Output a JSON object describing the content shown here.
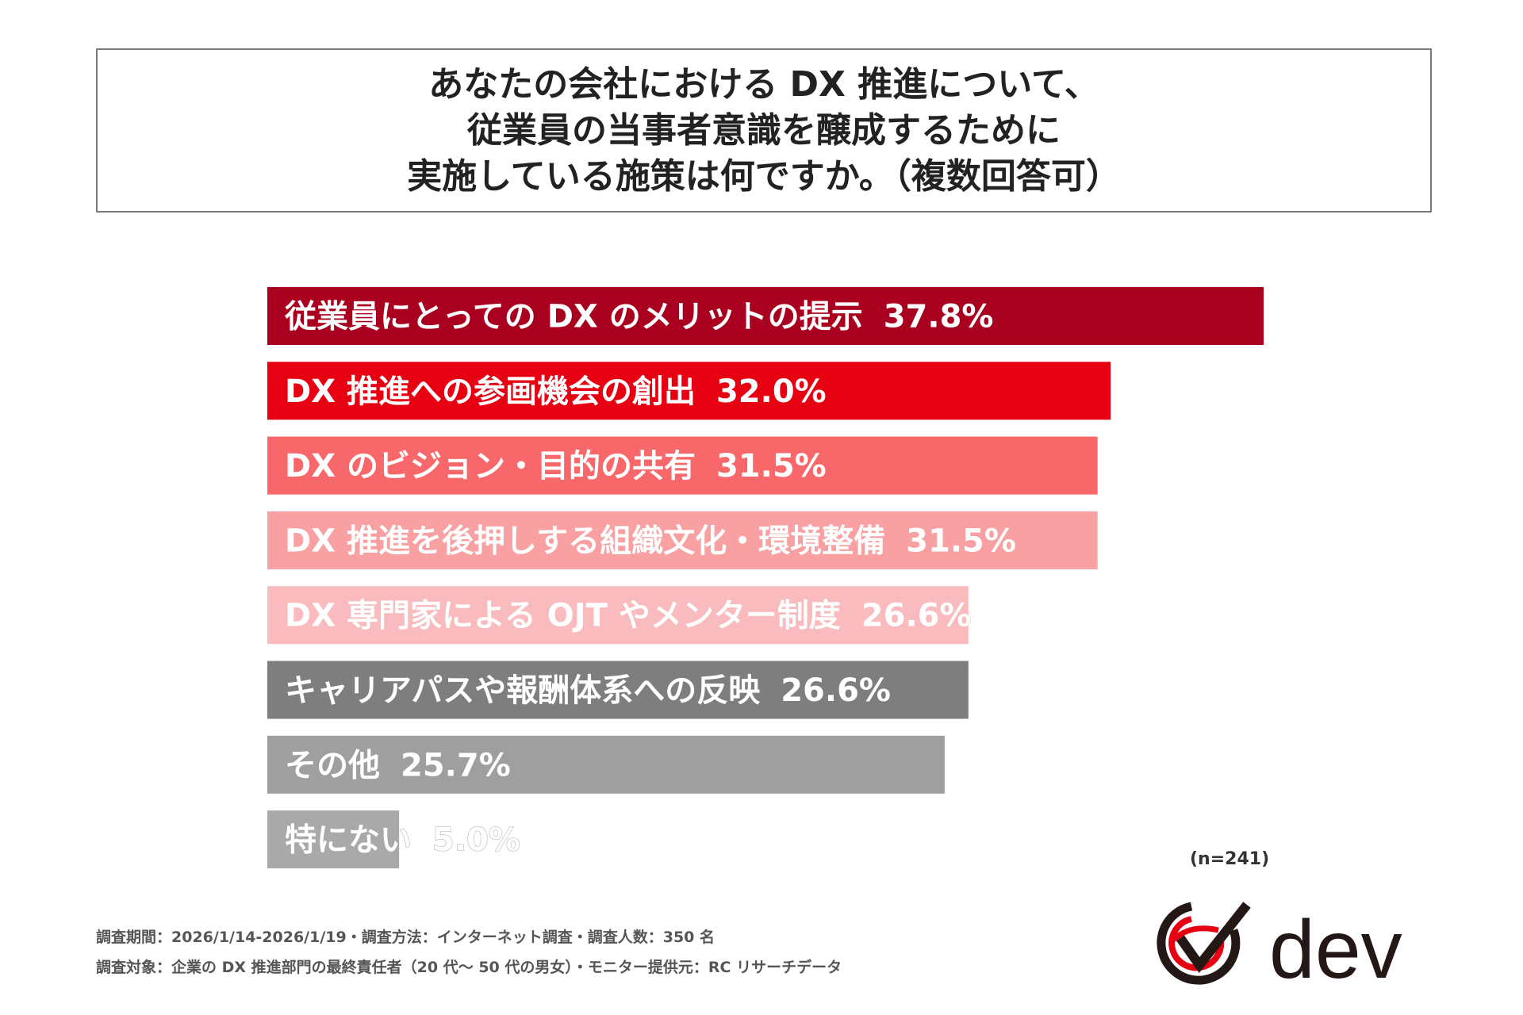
{
  "title": {
    "lines": [
      "あなたの会社における DX 推進について、",
      "従業員の当事者意識を醸成するために",
      "実施している施策は何ですか。（複数回答可）"
    ]
  },
  "chart_data": {
    "type": "bar",
    "orientation": "horizontal",
    "xlim": [
      0,
      37.8
    ],
    "categories": [
      "従業員にとっての DX のメリットの提示",
      "DX 推進への参画機会の創出",
      "DX のビジョン・目的の共有",
      "DX 推進を後押しする組織文化・環境整備",
      "DX 専門家による OJT やメンター制度",
      "キャリアパスや報酬体系への反映",
      "その他",
      "特にない"
    ],
    "values": [
      37.8,
      32.0,
      31.5,
      31.5,
      26.6,
      26.6,
      25.7,
      5.0
    ],
    "value_labels": [
      "37.8%",
      "32.0%",
      "31.5%",
      "31.5%",
      "26.6%",
      "26.6%",
      "25.7%",
      "5.0%"
    ],
    "colors": [
      "#a8001e",
      "#e60012",
      "#f8686b",
      "#f8a0a2",
      "#f9bbbd",
      "#7e7e7e",
      "#9f9f9f",
      "#a9a9a9"
    ],
    "label_colors": [
      "#ffffff",
      "#ffffff",
      "#ffffff",
      "#ffffff",
      "#ffffff",
      "#ffffff",
      "#ffffff",
      "#ffffff"
    ],
    "grid": false,
    "legend": "none"
  },
  "sample_size": "(n=241)",
  "footnotes": {
    "line1": "調査期間：2026/1/14-2026/1/19・調査方法：インターネット調査・調査人数：350 名",
    "line2": "調査対象：企業の DX 推進部門の最終責任者（20 代～ 50 代の男女）・モニター提供元：RC リサーチデータ"
  },
  "logo": {
    "text": "dev",
    "colors": {
      "mark_red": "#e60012",
      "mark_dark": "#231815",
      "text": "#231815"
    }
  }
}
